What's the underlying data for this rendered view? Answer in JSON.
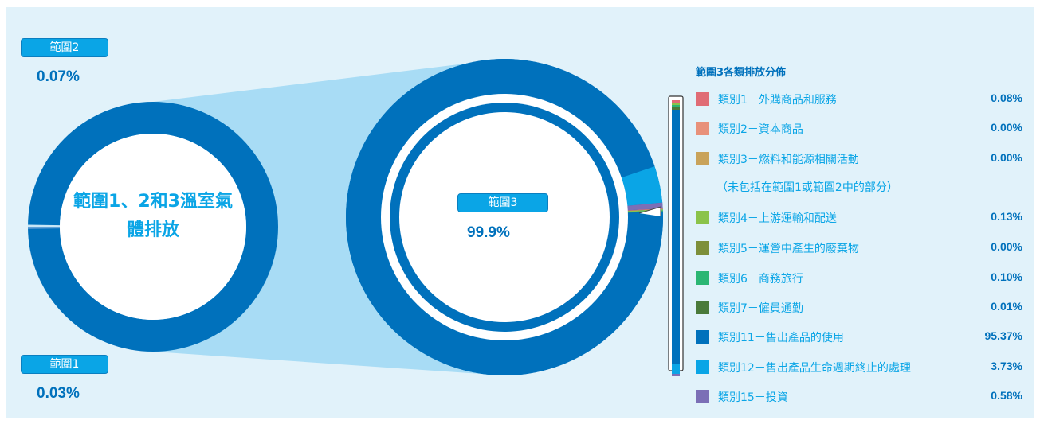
{
  "chart_data": {
    "type": "pie",
    "overview": {
      "center_label_line1": "範圍1、2和3溫室氣",
      "center_label_line2": "體排放",
      "segments": [
        {
          "name": "範圍1",
          "value": 0.03,
          "value_label": "0.03%",
          "color": "#4a90d0"
        },
        {
          "name": "範圍2",
          "value": 0.07,
          "value_label": "0.07%",
          "color": "#c8e6f6"
        },
        {
          "name": "範圍3",
          "value": 99.9,
          "value_label": "99.9%",
          "color": "#0071bc"
        }
      ]
    },
    "scope3_breakdown": {
      "title": "範圍3各類排放分佈",
      "note": "（未包括在範圍1或範圍2中的部分）",
      "categories": [
        {
          "label": "類別1－外購商品和服務",
          "value": 0.08,
          "value_label": "0.08%",
          "color": "#e06c75"
        },
        {
          "label": "類別2－資本商品",
          "value": 0.0,
          "value_label": "0.00%",
          "color": "#e8917a"
        },
        {
          "label": "類別3－燃料和能源相關活動",
          "value": 0.0,
          "value_label": "0.00%",
          "color": "#c9a35a"
        },
        {
          "label": "類別4－上游運輸和配送",
          "value": 0.13,
          "value_label": "0.13%",
          "color": "#8bc34a"
        },
        {
          "label": "類別5－運營中產生的廢棄物",
          "value": 0.0,
          "value_label": "0.00%",
          "color": "#7d8f3a"
        },
        {
          "label": "類別6－商務旅行",
          "value": 0.1,
          "value_label": "0.10%",
          "color": "#2bb673"
        },
        {
          "label": "類別7－僱員通勤",
          "value": 0.01,
          "value_label": "0.01%",
          "color": "#4a7a3a"
        },
        {
          "label": "類別11－售出產品的使用",
          "value": 95.37,
          "value_label": "95.37%",
          "color": "#0071bc"
        },
        {
          "label": "類別12－售出產品生命週期終止的處理",
          "value": 3.73,
          "value_label": "3.73%",
          "color": "#0aa5e6"
        },
        {
          "label": "類別15－投資",
          "value": 0.58,
          "value_label": "0.58%",
          "color": "#7b6fb6"
        }
      ]
    }
  },
  "colors": {
    "panel_bg": "#e1f2fa",
    "connector_fill": "#a8dcf5",
    "badge_bg": "#0aa5e6",
    "text_dark": "#0071bc",
    "text_light": "#0aa5e6"
  }
}
